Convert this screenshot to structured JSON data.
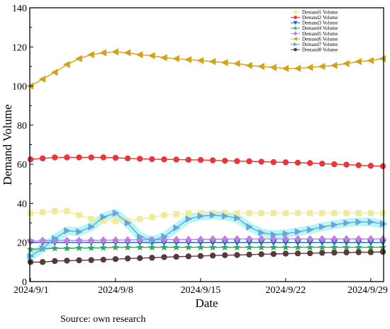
{
  "chart_data": {
    "type": "line",
    "title": "",
    "xlabel": "Date",
    "ylabel": "Demand Volume",
    "ylim": [
      0,
      140
    ],
    "yticks": [
      0,
      20,
      40,
      60,
      80,
      100,
      120,
      140
    ],
    "xticks": [
      "2024/9/1",
      "2024/9/8",
      "2024/9/15",
      "2024/9/22",
      "2024/9/29"
    ],
    "x": [
      "2024/9/1",
      "2024/9/2",
      "2024/9/3",
      "2024/9/4",
      "2024/9/5",
      "2024/9/6",
      "2024/9/7",
      "2024/9/8",
      "2024/9/9",
      "2024/9/10",
      "2024/9/11",
      "2024/9/12",
      "2024/9/13",
      "2024/9/14",
      "2024/9/15",
      "2024/9/16",
      "2024/9/17",
      "2024/9/18",
      "2024/9/19",
      "2024/9/20",
      "2024/9/21",
      "2024/9/22",
      "2024/9/23",
      "2024/9/24",
      "2024/9/25",
      "2024/9/26",
      "2024/9/27",
      "2024/9/28",
      "2024/9/29",
      "2024/9/30"
    ],
    "grid": false,
    "legend_position": "top-right",
    "series": [
      {
        "name": "Demand1 Volume",
        "color": "#eeeb9a",
        "marker": "square",
        "values": [
          35,
          35.5,
          36,
          36,
          34,
          32,
          31,
          31,
          31,
          32,
          33,
          34,
          34.5,
          35,
          35,
          35,
          35,
          35,
          35,
          35,
          35,
          35,
          35,
          35,
          35,
          35,
          35,
          35,
          35,
          35
        ]
      },
      {
        "name": "Demand2 Volume",
        "color": "#e8363a",
        "marker": "circle",
        "values": [
          62.5,
          63,
          63.5,
          63.5,
          63.5,
          63.5,
          63.5,
          63.3,
          63,
          62.8,
          62.6,
          62.5,
          62.4,
          62.3,
          62.2,
          62,
          61.8,
          61.6,
          61.5,
          61.3,
          61.1,
          61,
          60.8,
          60.6,
          60.3,
          60,
          59.8,
          59.5,
          59.2,
          59
        ]
      },
      {
        "name": "Demand3 Volume",
        "color": "#1e5ec8",
        "marker": "triangle-down",
        "values": [
          20,
          20,
          20,
          20,
          20,
          20,
          20,
          20,
          20,
          20,
          20,
          20,
          20,
          20,
          20,
          20,
          20,
          20,
          20,
          20,
          20,
          20,
          20,
          20,
          20,
          20,
          20,
          20,
          20,
          20
        ]
      },
      {
        "name": "Demand4 Volume",
        "color": "#2da862",
        "marker": "star",
        "values": [
          16.5,
          16.8,
          17,
          17,
          17.2,
          17.2,
          17.3,
          17.5,
          17.5,
          17.5,
          17.5,
          17.5,
          17.5,
          17.5,
          17.5,
          17.5,
          17.5,
          17.5,
          17.5,
          17.5,
          17.5,
          17.5,
          17.5,
          17.5,
          17.5,
          17.5,
          17.5,
          17.5,
          17.5,
          17.5
        ]
      },
      {
        "name": "Demand5 Volume",
        "color": "#c27de0",
        "marker": "diamond",
        "values": [
          20.5,
          21,
          21,
          21,
          21,
          21,
          21.2,
          21.2,
          21.3,
          21.4,
          21.4,
          21.5,
          21.5,
          21.5,
          21.6,
          21.7,
          21.7,
          21.8,
          21.8,
          21.8,
          21.8,
          21.8,
          21.8,
          21.8,
          21.8,
          21.8,
          21.8,
          21.8,
          21.8,
          21.8
        ]
      },
      {
        "name": "Demand6 Volume",
        "color": "#d2a21a",
        "marker": "triangle-left",
        "values": [
          100,
          103.5,
          107,
          111,
          114,
          116,
          117,
          117.5,
          117,
          116,
          115.5,
          114.5,
          114,
          113.5,
          113,
          112.5,
          112,
          111.5,
          110.5,
          110,
          109.5,
          109,
          109,
          109.5,
          110,
          110.5,
          111.5,
          112.5,
          113,
          114
        ]
      },
      {
        "name": "Demand7 Volume",
        "color": "#6aa4d8",
        "marker": "triangle-right",
        "values": [
          13,
          17,
          22,
          26,
          25.5,
          28,
          33,
          35,
          30,
          23,
          21,
          23,
          27.5,
          32,
          33.5,
          34,
          33.5,
          32.5,
          28,
          25,
          24,
          24.5,
          25.5,
          26.5,
          28,
          29,
          30,
          30.5,
          30.5,
          29.5
        ]
      },
      {
        "name": "Demand8 Volume",
        "color": "#5a3a38",
        "marker": "circle",
        "values": [
          10,
          10,
          10.5,
          10.7,
          10.9,
          11,
          11.2,
          11.5,
          11.8,
          12,
          12.2,
          12.5,
          12.7,
          12.9,
          13.1,
          13.3,
          13.5,
          13.6,
          13.8,
          14,
          14.1,
          14.3,
          14.4,
          14.5,
          14.7,
          14.8,
          14.9,
          15,
          15,
          15.2
        ]
      }
    ]
  },
  "source_text": "Source: own research"
}
